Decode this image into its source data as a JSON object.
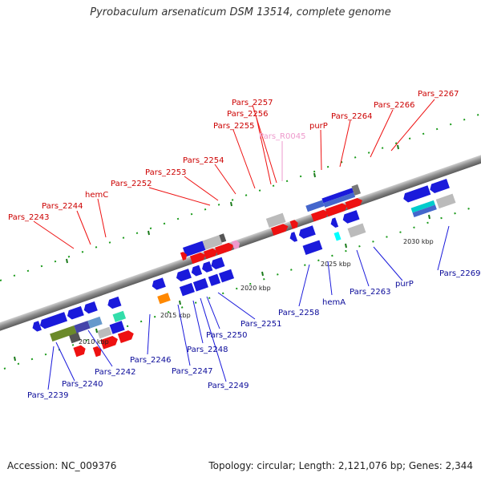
{
  "title": "Pyrobaculum arsenaticum DSM 13514, complete genome",
  "accession": "Accession: NC_009376",
  "genome_info": "Topology: circular; Length: 2,121,076 bp; Genes: 2,344",
  "colors": {
    "forward_gene": "#ee1111",
    "reverse_gene": "#1a1adb",
    "rna_gene": "#ee99cc",
    "forward_label": "#cc0000",
    "reverse_label": "#0a0a99",
    "backbone": "#888888",
    "tick_mark": "#1a7a1a"
  },
  "ticks": [
    "2010 kbp",
    "2015 kbp",
    "2020 kbp",
    "2025 kbp",
    "2030 kbp"
  ],
  "forward_labels": [
    "Pars_2243",
    "Pars_2244",
    "hemC",
    "Pars_2252",
    "Pars_2253",
    "Pars_2254",
    "Pars_2255",
    "Pars_2256",
    "Pars_2257",
    "Pars_R0045",
    "purP",
    "Pars_2264",
    "Pars_2266",
    "Pars_2267"
  ],
  "reverse_labels": [
    "Pars_2239",
    "Pars_2240",
    "Pars_2242",
    "Pars_2246",
    "Pars_2247",
    "Pars_2248",
    "Pars_2249",
    "Pars_2250",
    "Pars_2251",
    "Pars_2258",
    "hemA",
    "Pars_2263",
    "purP",
    "Pars_2269"
  ]
}
